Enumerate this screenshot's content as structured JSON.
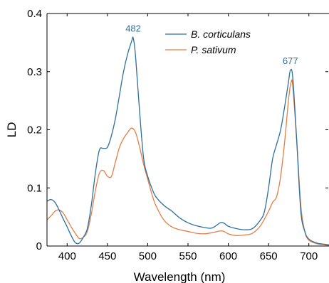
{
  "chart_data": {
    "type": "line",
    "title": "",
    "xlabel": "Wavelength (nm)",
    "ylabel": "LD",
    "xlim": [
      375,
      725
    ],
    "ylim": [
      0,
      0.4
    ],
    "xticks": [
      400,
      450,
      500,
      550,
      600,
      650,
      700
    ],
    "xtick_labels": [
      "400",
      "450",
      "500",
      "550",
      "600",
      "650",
      "700"
    ],
    "yticks": [
      0,
      0.1,
      0.2,
      0.3,
      0.4
    ],
    "ytick_labels": [
      "0",
      "0.1",
      "0.2",
      "0.3",
      "0.4"
    ],
    "grid": false,
    "legend": "top-right",
    "series": [
      {
        "name": "B. corticulans",
        "color": "#2e6f9e",
        "x": [
          375,
          380,
          385,
          390,
          395,
          400,
          405,
          410,
          415,
          420,
          425,
          430,
          435,
          440,
          445,
          450,
          455,
          460,
          465,
          470,
          475,
          480,
          482,
          485,
          490,
          495,
          500,
          505,
          510,
          520,
          530,
          540,
          550,
          560,
          570,
          580,
          590,
          595,
          600,
          610,
          620,
          630,
          640,
          645,
          650,
          655,
          660,
          665,
          670,
          675,
          677,
          680,
          685,
          690,
          695,
          700,
          710,
          720,
          725
        ],
        "y": [
          0.077,
          0.08,
          0.075,
          0.062,
          0.047,
          0.033,
          0.018,
          0.006,
          0.005,
          0.015,
          0.03,
          0.07,
          0.125,
          0.165,
          0.168,
          0.17,
          0.19,
          0.22,
          0.26,
          0.3,
          0.33,
          0.352,
          0.358,
          0.325,
          0.23,
          0.15,
          0.12,
          0.1,
          0.085,
          0.07,
          0.06,
          0.048,
          0.04,
          0.035,
          0.032,
          0.031,
          0.04,
          0.039,
          0.034,
          0.03,
          0.028,
          0.03,
          0.045,
          0.06,
          0.1,
          0.15,
          0.175,
          0.2,
          0.24,
          0.285,
          0.302,
          0.29,
          0.18,
          0.06,
          0.025,
          0.012,
          0.005,
          0.003,
          0.002
        ]
      },
      {
        "name": "P. sativum",
        "color": "#e37f45",
        "x": [
          375,
          380,
          385,
          390,
          395,
          400,
          405,
          410,
          415,
          420,
          425,
          430,
          435,
          440,
          445,
          450,
          455,
          460,
          465,
          470,
          475,
          480,
          485,
          490,
          495,
          500,
          505,
          510,
          520,
          530,
          540,
          550,
          560,
          570,
          580,
          590,
          595,
          600,
          610,
          620,
          630,
          640,
          650,
          655,
          660,
          665,
          670,
          675,
          678,
          680,
          685,
          690,
          695,
          700,
          710,
          720,
          725
        ],
        "y": [
          0.045,
          0.052,
          0.06,
          0.062,
          0.057,
          0.045,
          0.033,
          0.022,
          0.013,
          0.015,
          0.025,
          0.055,
          0.095,
          0.125,
          0.13,
          0.12,
          0.12,
          0.145,
          0.17,
          0.185,
          0.195,
          0.203,
          0.195,
          0.17,
          0.14,
          0.115,
          0.09,
          0.07,
          0.045,
          0.033,
          0.028,
          0.025,
          0.022,
          0.021,
          0.023,
          0.026,
          0.025,
          0.021,
          0.018,
          0.019,
          0.022,
          0.035,
          0.06,
          0.075,
          0.085,
          0.12,
          0.18,
          0.255,
          0.282,
          0.275,
          0.18,
          0.07,
          0.025,
          0.01,
          0.004,
          0.002,
          0.001
        ]
      }
    ],
    "annotations": [
      {
        "text": "482",
        "x": 482,
        "y": 0.358,
        "color": "#2e6f9e"
      },
      {
        "text": "677",
        "x": 677,
        "y": 0.302,
        "color": "#2e6f9e"
      }
    ]
  }
}
